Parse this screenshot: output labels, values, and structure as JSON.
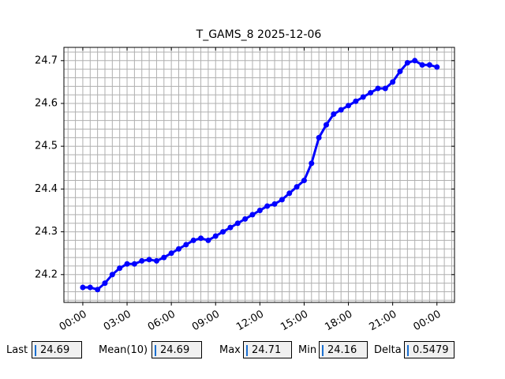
{
  "chart_data": {
    "type": "line",
    "title": "T_GAMS_8 2025-12-06",
    "x": [
      0,
      0.5,
      1,
      1.5,
      2,
      2.5,
      3,
      3.5,
      4,
      4.5,
      5,
      5.5,
      6,
      6.5,
      7,
      7.5,
      8,
      8.5,
      9,
      9.5,
      10,
      10.5,
      11,
      11.5,
      12,
      12.5,
      13,
      13.5,
      14,
      14.5,
      15,
      15.5,
      16,
      16.5,
      17,
      17.5,
      18,
      18.5,
      19,
      19.5,
      20,
      20.5,
      21,
      21.5,
      22,
      22.5,
      23,
      23.5,
      24
    ],
    "series": [
      {
        "name": "T_GAMS_8",
        "color": "#0000ff",
        "values": [
          24.17,
          24.17,
          24.165,
          24.18,
          24.2,
          24.215,
          24.225,
          24.225,
          24.232,
          24.235,
          24.232,
          24.24,
          24.25,
          24.26,
          24.27,
          24.28,
          24.285,
          24.28,
          24.29,
          24.3,
          24.31,
          24.32,
          24.33,
          24.34,
          24.35,
          24.36,
          24.365,
          24.375,
          24.39,
          24.405,
          24.42,
          24.46,
          24.52,
          24.55,
          24.575,
          24.585,
          24.595,
          24.605,
          24.615,
          24.625,
          24.635,
          24.635,
          24.65,
          24.675,
          24.695,
          24.7,
          24.69,
          24.69,
          24.685
        ]
      }
    ],
    "xlim": [
      -1.28,
      25.19
    ],
    "xticks": [
      {
        "value": 0,
        "label": "00:00"
      },
      {
        "value": 3,
        "label": "03:00"
      },
      {
        "value": 6,
        "label": "06:00"
      },
      {
        "value": 9,
        "label": "09:00"
      },
      {
        "value": 12,
        "label": "12:00"
      },
      {
        "value": 15,
        "label": "15:00"
      },
      {
        "value": 18,
        "label": "18:00"
      },
      {
        "value": 21,
        "label": "21:00"
      },
      {
        "value": 24,
        "label": "00:00"
      }
    ],
    "ylim": [
      24.135,
      24.731
    ],
    "yticks": [
      24.2,
      24.3,
      24.4,
      24.5,
      24.6,
      24.7
    ],
    "grid": true
  },
  "readouts": [
    {
      "label": "Last",
      "value": "24.69"
    },
    {
      "label": "Mean(10)",
      "value": "24.69"
    },
    {
      "label": "Max",
      "value": "24.71"
    },
    {
      "label": "Min",
      "value": "24.16"
    },
    {
      "label": "Delta",
      "value": "0.5479"
    }
  ]
}
